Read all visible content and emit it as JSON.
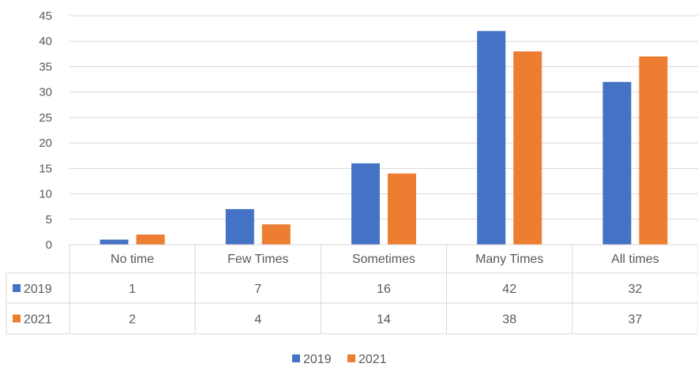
{
  "chart_data": {
    "type": "bar",
    "categories": [
      "No time",
      "Few Times",
      "Sometimes",
      "Many Times",
      "All times"
    ],
    "series": [
      {
        "name": "2019",
        "values": [
          1,
          7,
          16,
          42,
          32
        ],
        "color": "#4472c4"
      },
      {
        "name": "2021",
        "values": [
          2,
          4,
          14,
          38,
          37
        ],
        "color": "#ed7d31"
      }
    ],
    "ylim": [
      0,
      45
    ],
    "yticks": [
      0,
      5,
      10,
      15,
      20,
      25,
      30,
      35,
      40,
      45
    ],
    "grid": true,
    "data_table": true,
    "legend_position": "bottom",
    "title": "",
    "xlabel": "",
    "ylabel": ""
  }
}
